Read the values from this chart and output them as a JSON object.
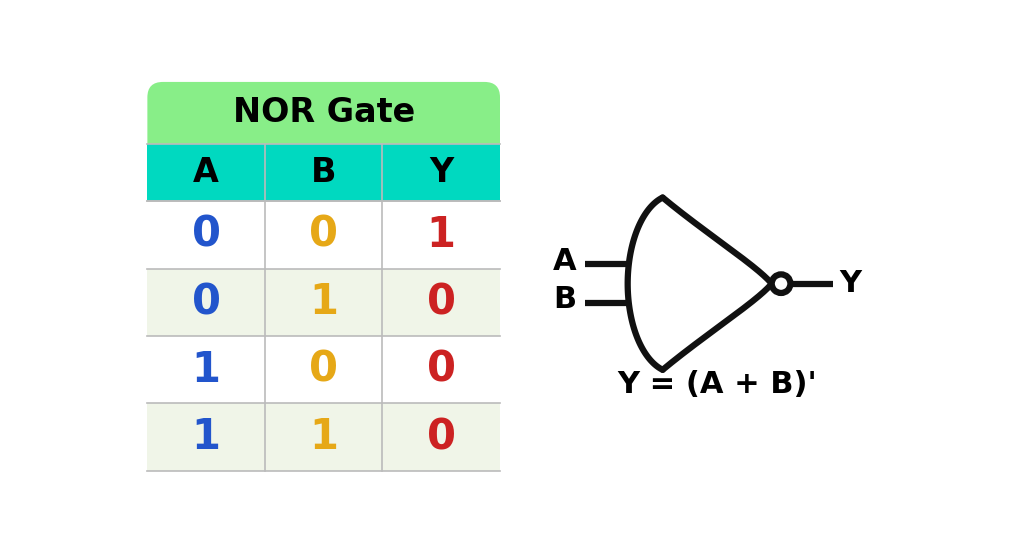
{
  "title": "NOR Gate",
  "headers": [
    "A",
    "B",
    "Y"
  ],
  "rows": [
    [
      "0",
      "0",
      "1"
    ],
    [
      "0",
      "1",
      "0"
    ],
    [
      "1",
      "0",
      "0"
    ],
    [
      "1",
      "1",
      "0"
    ]
  ],
  "col_colors": [
    "#2255cc",
    "#e6a817",
    "#cc2222"
  ],
  "header_bg": "#00d9c0",
  "title_bg": "#88ee88",
  "row_bg_even": "#ffffff",
  "row_bg_odd": "#f0f5e8",
  "table_border": "#bbbbbb",
  "background": "#ffffff",
  "formula": "Y = (A + B)'",
  "gate_color": "#111111",
  "title_fontsize": 24,
  "header_fontsize": 24,
  "data_fontsize": 30
}
